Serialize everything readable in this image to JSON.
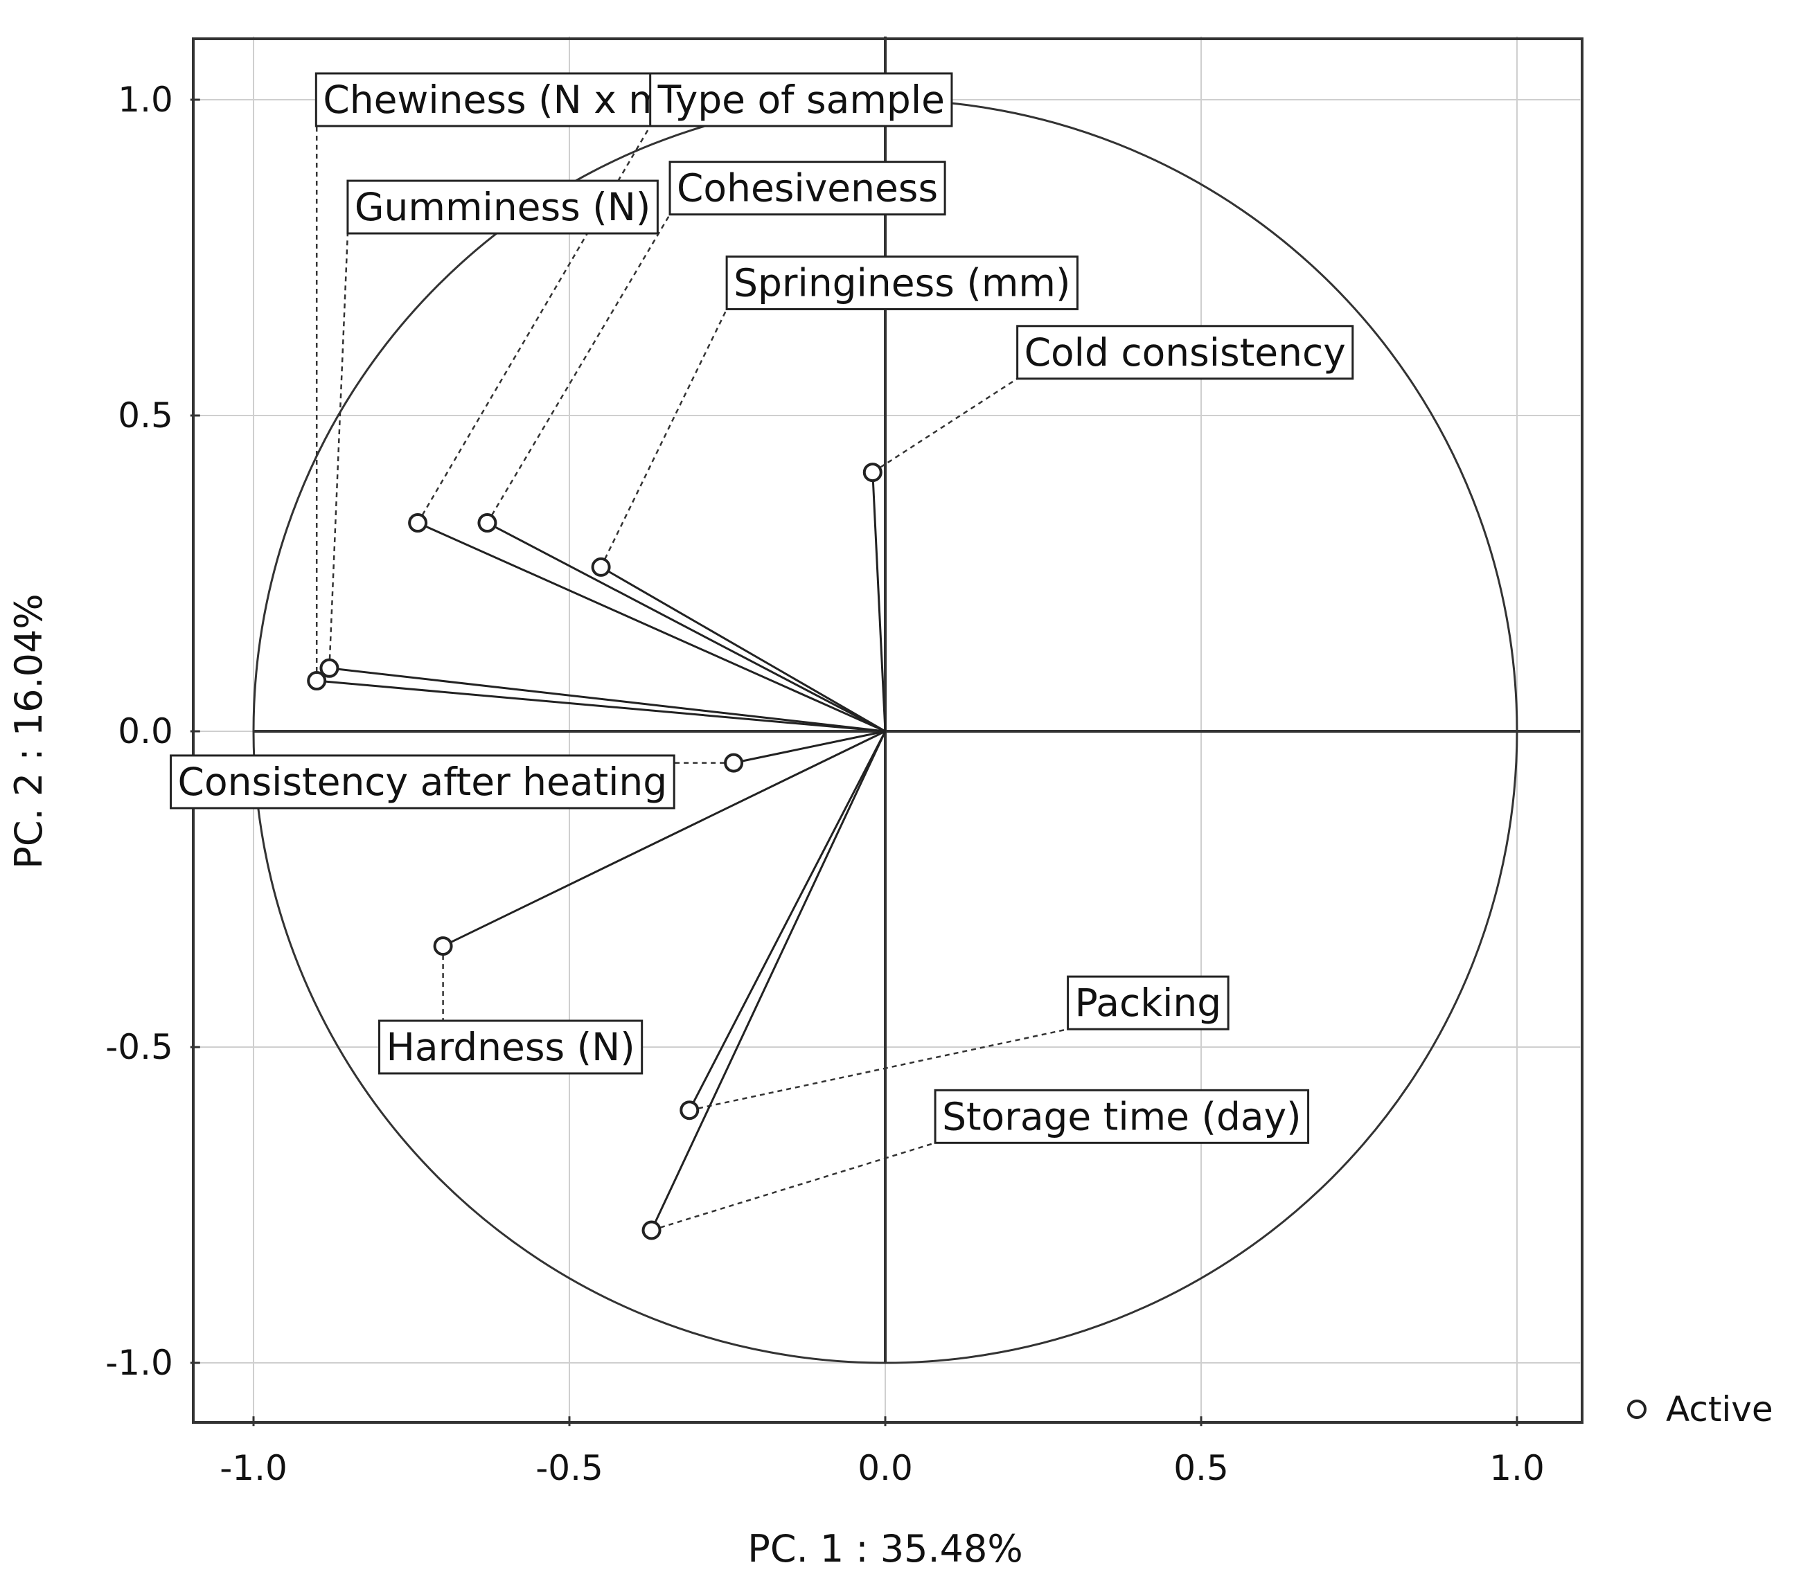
{
  "chart_data": {
    "type": "scatter",
    "subtype": "pca-correlation-circle",
    "title": "",
    "xlabel": "PC. 1 : 35.48%",
    "ylabel": "PC. 2 : 16.04%",
    "xlim": [
      -1.1,
      1.1
    ],
    "ylim": [
      -1.1,
      1.1
    ],
    "xticks": [
      "-1.0",
      "-0.5",
      "0.0",
      "0.5",
      "1.0"
    ],
    "yticks": [
      "1.0",
      "0.5",
      "0.0",
      "-0.5",
      "-1.0"
    ],
    "grid": true,
    "unit_circle": true,
    "legend": {
      "position": "bottom-right",
      "entries": [
        "Active"
      ]
    },
    "points": [
      {
        "label": "Chewiness (N x mm)",
        "x": -0.9,
        "y": 0.08,
        "label_x": -0.89,
        "label_y": 1.0
      },
      {
        "label": "Type of sample",
        "x": -0.74,
        "y": 0.33,
        "label_x": -0.36,
        "label_y": 1.0
      },
      {
        "label": "Gumminess (N)",
        "x": -0.88,
        "y": 0.1,
        "label_x": -0.84,
        "label_y": 0.83
      },
      {
        "label": "Cohesiveness",
        "x": -0.63,
        "y": 0.33,
        "label_x": -0.33,
        "label_y": 0.86
      },
      {
        "label": "Springiness (mm)",
        "x": -0.45,
        "y": 0.26,
        "label_x": -0.24,
        "label_y": 0.71
      },
      {
        "label": "Cold consistency",
        "x": -0.02,
        "y": 0.41,
        "label_x": 0.22,
        "label_y": 0.6
      },
      {
        "label": "Consistency after heating",
        "x": -0.24,
        "y": -0.05,
        "label_x": -1.12,
        "label_y": -0.08
      },
      {
        "label": "Hardness (N)",
        "x": -0.7,
        "y": -0.34,
        "label_x": -0.79,
        "label_y": -0.5
      },
      {
        "label": "Packing",
        "x": -0.31,
        "y": -0.6,
        "label_x": 0.3,
        "label_y": -0.43
      },
      {
        "label": "Storage time (day)",
        "x": -0.37,
        "y": -0.79,
        "label_x": 0.09,
        "label_y": -0.61
      }
    ]
  }
}
